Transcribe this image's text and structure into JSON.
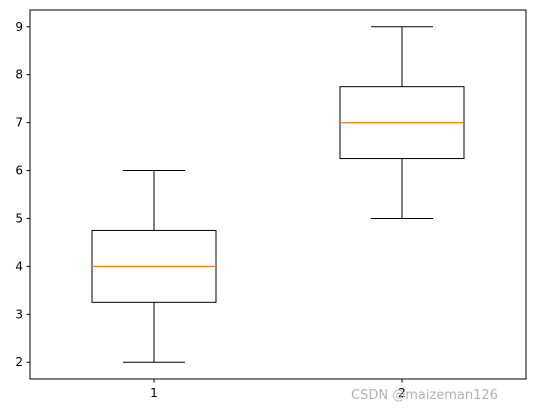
{
  "chart_data": {
    "type": "boxplot",
    "categories": [
      "1",
      "2"
    ],
    "boxes": [
      {
        "category": "1",
        "whislo": 2,
        "q1": 3.25,
        "med": 4,
        "q3": 4.75,
        "whishi": 6
      },
      {
        "category": "2",
        "whislo": 5,
        "q1": 6.25,
        "med": 7,
        "q3": 7.75,
        "whishi": 9
      }
    ],
    "y_ticks": [
      "2",
      "3",
      "4",
      "5",
      "6",
      "7",
      "8",
      "9"
    ],
    "ylim": [
      1.65,
      9.35
    ],
    "grid": false,
    "colors": {
      "box": "#000000",
      "median": "#ff7f0e",
      "frame": "#000000"
    }
  },
  "watermark": "CSDN @maizeman126"
}
